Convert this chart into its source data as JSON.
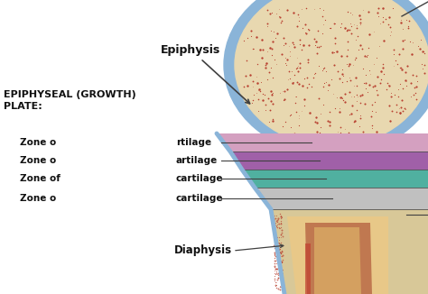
{
  "bg_color": "#ffffff",
  "title_text": "EPIPHYSEAL (GROWTH)\nPLATE:",
  "epiphysis_label": "Epiphysis",
  "diaphysis_label": "Diaphysis",
  "zone_label_left": [
    "Zone o",
    "Zone o",
    "Zone of",
    "Zone o"
  ],
  "zone_label_right": [
    "rtilage",
    "artilage",
    "cartilage",
    "cartilage"
  ],
  "zone_colors": [
    "#d4a0c0",
    "#a060a8",
    "#50b0a0",
    "#c0c0c0"
  ],
  "zone_border_color": "#505050",
  "epiphysis_outer_color": "#8ab4d8",
  "epiphysis_bone_color": "#e8d8b0",
  "epiphysis_spot_color": "#b84030",
  "shaft_outer_color": "#d8c898",
  "shaft_marrow_dark": "#c07850",
  "shaft_marrow_mid": "#d4a060",
  "shaft_marrow_light": "#e8c888",
  "shaft_center_color": "#d09060",
  "line_color": "#404040",
  "text_color": "#111111"
}
